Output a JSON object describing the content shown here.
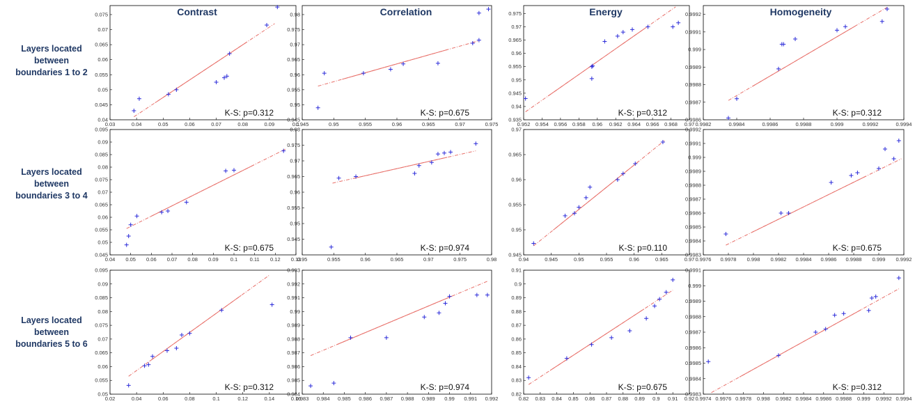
{
  "column_titles": [
    "Contrast",
    "Correlation",
    "Energy",
    "Homogeneity"
  ],
  "row_labels": [
    [
      "Layers located",
      "between",
      "boundaries 1 to 2"
    ],
    [
      "Layers located",
      "between",
      "boundaries 3 to 4"
    ],
    [
      "Layers located",
      "between",
      "boundaries 5 to 6"
    ]
  ],
  "colors": {
    "points": "#2b2bd9",
    "fit_line": "#e8706a",
    "text": "#1f3864"
  },
  "chart_data": [
    {
      "type": "scatter",
      "row": 0,
      "col": 0,
      "annotation": "K-S: p=0.312",
      "xlim": [
        0.03,
        0.1
      ],
      "ylim": [
        0.04,
        0.078
      ],
      "xticks": [
        "0.03",
        "0.04",
        "0.05",
        "0.06",
        "0.07",
        "0.08",
        "0.09",
        "0.1"
      ],
      "yticks": [
        "0.04",
        "0.045",
        "0.05",
        "0.055",
        "0.06",
        "0.065",
        "0.07",
        "0.075"
      ],
      "x": [
        0.039,
        0.041,
        0.052,
        0.055,
        0.07,
        0.073,
        0.074,
        0.075,
        0.089,
        0.093
      ],
      "y": [
        0.043,
        0.047,
        0.0485,
        0.05,
        0.0525,
        0.054,
        0.0545,
        0.062,
        0.0715,
        0.0775
      ],
      "fit": [
        [
          0.039,
          0.041
        ],
        [
          0.092,
          0.072
        ]
      ]
    },
    {
      "type": "scatter",
      "row": 0,
      "col": 1,
      "annotation": "K-S: p=0.675",
      "xlim": [
        0.945,
        0.975
      ],
      "ylim": [
        0.945,
        0.983
      ],
      "xticks": [
        "0.945",
        "0.95",
        "0.955",
        "0.96",
        "0.965",
        "0.97",
        "0.975"
      ],
      "yticks": [
        "0.945",
        "0.95",
        "0.955",
        "0.96",
        "0.965",
        "0.97",
        "0.975",
        "0.98"
      ],
      "x": [
        0.9475,
        0.9485,
        0.9547,
        0.959,
        0.961,
        0.9665,
        0.972,
        0.973,
        0.973,
        0.9745
      ],
      "y": [
        0.949,
        0.9605,
        0.9605,
        0.9618,
        0.9636,
        0.9638,
        0.9705,
        0.9715,
        0.9805,
        0.9818
      ],
      "fit": [
        [
          0.9475,
          0.9562
        ],
        [
          0.973,
          0.9713
        ]
      ]
    },
    {
      "type": "scatter",
      "row": 0,
      "col": 2,
      "annotation": "K-S: p=0.312",
      "xlim": [
        0.952,
        0.97
      ],
      "ylim": [
        0.935,
        0.978
      ],
      "xticks": [
        "0.952",
        "0.954",
        "0.956",
        "0.958",
        "0.96",
        "0.962",
        "0.964",
        "0.966",
        "0.968",
        "0.97"
      ],
      "yticks": [
        "0.935",
        "0.94",
        "0.945",
        "0.95",
        "0.955",
        "0.96",
        "0.965",
        "0.97",
        "0.975"
      ],
      "x": [
        0.9522,
        0.9594,
        0.9594,
        0.9595,
        0.9608,
        0.9622,
        0.9628,
        0.9638,
        0.9655,
        0.9682,
        0.9688
      ],
      "y": [
        0.943,
        0.9505,
        0.955,
        0.9553,
        0.9645,
        0.9665,
        0.968,
        0.969,
        0.97,
        0.97,
        0.9715
      ],
      "fit": [
        [
          0.9522,
          0.938
        ],
        [
          0.9685,
          0.9775
        ]
      ]
    },
    {
      "type": "scatter",
      "row": 0,
      "col": 3,
      "annotation": "K-S: p=0.312",
      "xlim": [
        0.9982,
        0.9994
      ],
      "ylim": [
        0.9986,
        0.99925
      ],
      "xticks": [
        "0.9982",
        "0.9984",
        "0.9986",
        "0.9988",
        "0.999",
        "0.9992",
        "0.9994"
      ],
      "yticks": [
        "0.9986",
        "0.9987",
        "0.9988",
        "0.9989",
        "0.999",
        "0.9991",
        "0.9992"
      ],
      "x": [
        0.99835,
        0.9984,
        0.99865,
        0.99867,
        0.99868,
        0.99875,
        0.999,
        0.99905,
        0.99927,
        0.9993
      ],
      "y": [
        0.99861,
        0.99872,
        0.99889,
        0.99903,
        0.99903,
        0.99906,
        0.99911,
        0.99913,
        0.99916,
        0.99923
      ],
      "fit": [
        [
          0.99835,
          0.99871
        ],
        [
          0.9993,
          0.99924
        ]
      ]
    },
    {
      "type": "scatter",
      "row": 1,
      "col": 0,
      "annotation": "K-S: p=0.675",
      "xlim": [
        0.04,
        0.13
      ],
      "ylim": [
        0.045,
        0.095
      ],
      "xticks": [
        "0.04",
        "0.05",
        "0.06",
        "0.07",
        "0.08",
        "0.09",
        "0.1",
        "0.11",
        "0.12",
        "0.13"
      ],
      "yticks": [
        "0.045",
        "0.05",
        "0.055",
        "0.06",
        "0.065",
        "0.07",
        "0.075",
        "0.08",
        "0.085",
        "0.09",
        "0.095"
      ],
      "x": [
        0.048,
        0.049,
        0.05,
        0.053,
        0.065,
        0.068,
        0.077,
        0.096,
        0.1,
        0.124
      ],
      "y": [
        0.049,
        0.0525,
        0.057,
        0.0605,
        0.062,
        0.0625,
        0.066,
        0.0785,
        0.0788,
        0.0865
      ],
      "fit": [
        [
          0.048,
          0.0555
        ],
        [
          0.125,
          0.0872
        ]
      ]
    },
    {
      "type": "scatter",
      "row": 1,
      "col": 1,
      "annotation": "K-S: p=0.974",
      "xlim": [
        0.95,
        0.98
      ],
      "ylim": [
        0.94,
        0.98
      ],
      "xticks": [
        "0.95",
        "0.955",
        "0.96",
        "0.965",
        "0.97",
        "0.975",
        "0.98"
      ],
      "yticks": [
        "0.945",
        "0.95",
        "0.955",
        "0.96",
        "0.965",
        "0.97",
        "0.975",
        "0.98"
      ],
      "x": [
        0.9546,
        0.9558,
        0.9585,
        0.9678,
        0.9685,
        0.9705,
        0.9715,
        0.9725,
        0.9735,
        0.9775
      ],
      "y": [
        0.9425,
        0.9645,
        0.965,
        0.966,
        0.9685,
        0.9695,
        0.9722,
        0.9725,
        0.9728,
        0.9755
      ],
      "fit": [
        [
          0.9548,
          0.9629
        ],
        [
          0.9775,
          0.9732
        ]
      ]
    },
    {
      "type": "scatter",
      "row": 1,
      "col": 2,
      "annotation": "K-S: p=0.110",
      "xlim": [
        0.94,
        0.97
      ],
      "ylim": [
        0.945,
        0.97
      ],
      "xticks": [
        "0.94",
        "0.945",
        "0.95",
        "0.955",
        "0.96",
        "0.965",
        "0.97"
      ],
      "yticks": [
        "0.945",
        "0.95",
        "0.955",
        "0.96",
        "0.965",
        "0.97"
      ],
      "x": [
        0.9418,
        0.9475,
        0.9492,
        0.95,
        0.9513,
        0.952,
        0.957,
        0.958,
        0.9602,
        0.9652
      ],
      "y": [
        0.9473,
        0.9528,
        0.9533,
        0.9545,
        0.9564,
        0.9585,
        0.96,
        0.9612,
        0.9632,
        0.9675
      ],
      "fit": [
        [
          0.9418,
          0.9468
        ],
        [
          0.9655,
          0.9678
        ]
      ]
    },
    {
      "type": "scatter",
      "row": 1,
      "col": 3,
      "annotation": "K-S: p=0.675",
      "xlim": [
        0.9976,
        0.9992
      ],
      "ylim": [
        0.9983,
        0.9992
      ],
      "xticks": [
        "0.9976",
        "0.9978",
        "0.998",
        "0.9982",
        "0.9984",
        "0.9986",
        "0.9988",
        "0.999",
        "0.9992"
      ],
      "yticks": [
        "0.9983",
        "0.9984",
        "0.9985",
        "0.9986",
        "0.9987",
        "0.9988",
        "0.9989",
        "0.999",
        "0.9991",
        "0.9992"
      ],
      "x": [
        0.99778,
        0.99822,
        0.99828,
        0.99862,
        0.99878,
        0.99883,
        0.999,
        0.99905,
        0.99912,
        0.99916
      ],
      "y": [
        0.99845,
        0.9986,
        0.9986,
        0.99882,
        0.99887,
        0.99889,
        0.99892,
        0.99906,
        0.99899,
        0.99912
      ],
      "fit": [
        [
          0.99778,
          0.99837
        ],
        [
          0.99918,
          0.99899
        ]
      ]
    },
    {
      "type": "scatter",
      "row": 2,
      "col": 0,
      "annotation": "K-S: p=0.312",
      "xlim": [
        0.02,
        0.16
      ],
      "ylim": [
        0.05,
        0.095
      ],
      "xticks": [
        "0.02",
        "0.04",
        "0.06",
        "0.08",
        "0.1",
        "0.12",
        "0.14",
        "0.16"
      ],
      "yticks": [
        "0.05",
        "0.055",
        "0.06",
        "0.065",
        "0.07",
        "0.075",
        "0.08",
        "0.085",
        "0.09",
        "0.095"
      ],
      "x": [
        0.034,
        0.046,
        0.049,
        0.052,
        0.063,
        0.07,
        0.074,
        0.08,
        0.104,
        0.142
      ],
      "y": [
        0.0532,
        0.0603,
        0.0607,
        0.0637,
        0.0658,
        0.0667,
        0.0715,
        0.0721,
        0.0805,
        0.0825
      ],
      "fit": [
        [
          0.034,
          0.0565
        ],
        [
          0.14,
          0.0932
        ]
      ]
    },
    {
      "type": "scatter",
      "row": 2,
      "col": 1,
      "annotation": "K-S: p=0.974",
      "xlim": [
        0.983,
        0.992
      ],
      "ylim": [
        0.984,
        0.993
      ],
      "xticks": [
        "0.983",
        "0.984",
        "0.985",
        "0.986",
        "0.987",
        "0.988",
        "0.989",
        "0.99",
        "0.991",
        "0.992"
      ],
      "yticks": [
        "0.984",
        "0.985",
        "0.986",
        "0.987",
        "0.988",
        "0.989",
        "0.99",
        "0.991",
        "0.992",
        "0.993"
      ],
      "x": [
        0.9834,
        0.9845,
        0.9853,
        0.987,
        0.9888,
        0.9895,
        0.9898,
        0.99,
        0.9913,
        0.9918
      ],
      "y": [
        0.9846,
        0.9848,
        0.9881,
        0.9881,
        0.9896,
        0.9899,
        0.9906,
        0.9911,
        0.9912,
        0.9912
      ],
      "fit": [
        [
          0.9834,
          0.9868
        ],
        [
          0.9918,
          0.9922
        ]
      ]
    },
    {
      "type": "scatter",
      "row": 2,
      "col": 2,
      "annotation": "K-S: p=0.675",
      "xlim": [
        0.82,
        0.92
      ],
      "ylim": [
        0.82,
        0.91
      ],
      "xticks": [
        "0.82",
        "0.83",
        "0.84",
        "0.85",
        "0.86",
        "0.87",
        "0.88",
        "0.89",
        "0.9",
        "0.91",
        "0.92"
      ],
      "yticks": [
        "0.82",
        "0.83",
        "0.84",
        "0.85",
        "0.86",
        "0.87",
        "0.88",
        "0.89",
        "0.9",
        "0.91"
      ],
      "x": [
        0.823,
        0.846,
        0.861,
        0.873,
        0.884,
        0.894,
        0.899,
        0.902,
        0.906,
        0.91
      ],
      "y": [
        0.832,
        0.846,
        0.856,
        0.861,
        0.866,
        0.875,
        0.884,
        0.889,
        0.894,
        0.903
      ],
      "fit": [
        [
          0.823,
          0.827
        ],
        [
          0.91,
          0.8955
        ]
      ]
    },
    {
      "type": "scatter",
      "row": 2,
      "col": 3,
      "annotation": "K-S: p=0.312",
      "xlim": [
        0.9974,
        0.9994
      ],
      "ylim": [
        0.9983,
        0.9991
      ],
      "xticks": [
        "0.9974",
        "0.9976",
        "0.9978",
        "0.998",
        "0.9982",
        "0.9984",
        "0.9986",
        "0.9988",
        "0.999",
        "0.9992",
        "0.9994"
      ],
      "yticks": [
        "0.9983",
        "0.9984",
        "0.9985",
        "0.9986",
        "0.9987",
        "0.9988",
        "0.9989",
        "0.999",
        "0.9991"
      ],
      "x": [
        0.99745,
        0.99815,
        0.99852,
        0.99862,
        0.99871,
        0.9988,
        0.99905,
        0.99908,
        0.99912,
        0.99935
      ],
      "y": [
        0.99851,
        0.99855,
        0.9987,
        0.99872,
        0.99881,
        0.99882,
        0.99884,
        0.99892,
        0.99893,
        0.99905
      ],
      "fit": [
        [
          0.99748,
          0.99831
        ],
        [
          0.99935,
          0.99898
        ]
      ]
    }
  ]
}
